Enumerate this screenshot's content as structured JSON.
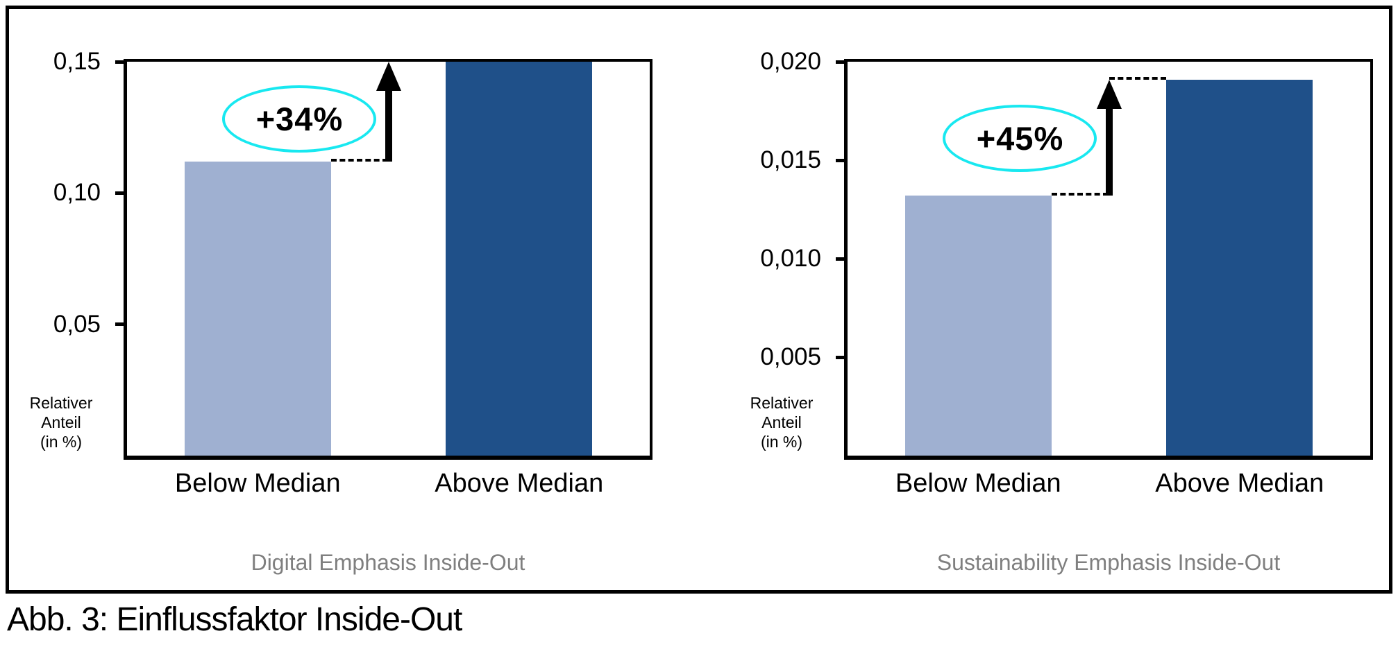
{
  "figure": {
    "caption": "Abb. 3: Einflussfaktor Inside-Out"
  },
  "colors": {
    "bar_below_median": "#9FB0D1",
    "bar_above_median": "#1F5089",
    "annotation_ellipse": "#18E8F0",
    "panel_title": "#7F7F7F",
    "axis_and_text": "#000000"
  },
  "chart_data": [
    {
      "type": "bar",
      "title": "Digital Emphasis Inside-Out",
      "categories": [
        "Below Median",
        "Above Median"
      ],
      "values": [
        0.112,
        0.15
      ],
      "ylim": [
        0,
        0.15
      ],
      "yticks": [
        {
          "value": 0.05,
          "label": "0,05"
        },
        {
          "value": 0.1,
          "label": "0,10"
        },
        {
          "value": 0.15,
          "label": "0,15"
        }
      ],
      "ylabel": "Relativer Anteil (in %)",
      "ylabel_lines": [
        "Relativer",
        "Anteil",
        "(in %)"
      ],
      "annotation": {
        "text": "+34%",
        "meaning": "increase from Below Median to Above Median"
      },
      "grid": false,
      "legend": null
    },
    {
      "type": "bar",
      "title": "Sustainability Emphasis Inside-Out",
      "categories": [
        "Below Median",
        "Above Median"
      ],
      "values": [
        0.0132,
        0.0191
      ],
      "ylim": [
        0,
        0.02
      ],
      "yticks": [
        {
          "value": 0.005,
          "label": "0,005"
        },
        {
          "value": 0.01,
          "label": "0,010"
        },
        {
          "value": 0.015,
          "label": "0,015"
        },
        {
          "value": 0.02,
          "label": "0,020"
        }
      ],
      "ylabel": "Relativer Anteil (in %)",
      "ylabel_lines": [
        "Relativer",
        "Anteil",
        "(in %)"
      ],
      "annotation": {
        "text": "+45%",
        "meaning": "increase from Below Median to Above Median"
      },
      "grid": false,
      "legend": null
    }
  ]
}
